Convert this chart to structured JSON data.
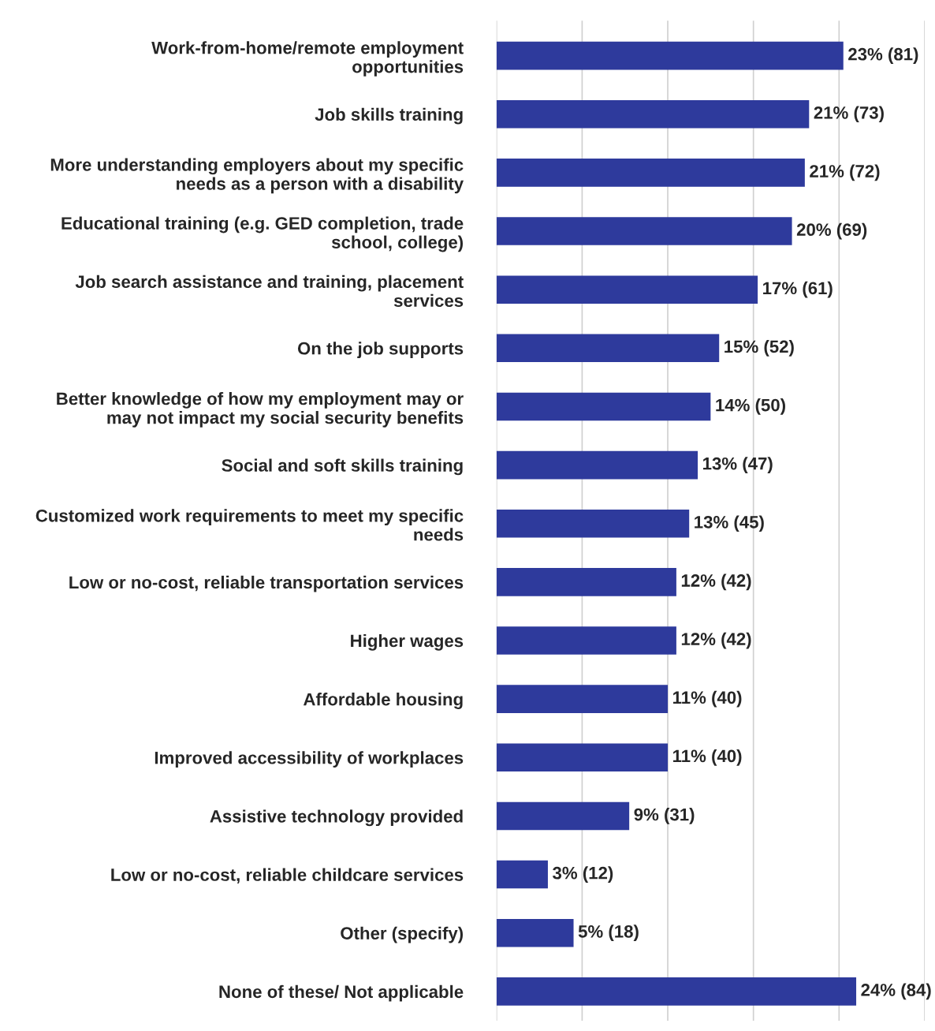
{
  "chart_data": {
    "type": "bar",
    "orientation": "horizontal",
    "categories": [
      "Work-from-home/remote employment\nopportunities",
      "Job skills training",
      "More understanding employers about my specific\nneeds as a person with a disability",
      "Educational training (e.g. GED completion, trade\nschool, college)",
      "Job search assistance and training, placement\nservices",
      "On the job supports",
      "Better knowledge of how my employment may or\nmay not impact my social security benefits",
      "Social and soft skills training",
      "Customized work requirements to meet my specific\nneeds",
      "Low or no-cost, reliable transportation services",
      "Higher wages",
      "Affordable housing",
      "Improved accessibility of workplaces",
      "Assistive technology provided",
      "Low or no-cost, reliable childcare services",
      "Other (specify)",
      "None of these/ Not applicable"
    ],
    "values": [
      81,
      73,
      72,
      69,
      61,
      52,
      50,
      47,
      45,
      42,
      42,
      40,
      40,
      31,
      12,
      18,
      84
    ],
    "value_labels": [
      "23% (81)",
      "21% (73)",
      "21% (72)",
      "20% (69)",
      "17% (61)",
      "15% (52)",
      "14% (50)",
      "13% (47)",
      "13% (45)",
      "12% (42)",
      "12% (42)",
      "11% (40)",
      "11% (40)",
      "9% (31)",
      "3% (12)",
      "5% (18)",
      "24% (84)"
    ],
    "color": "#2e3a9c",
    "xlim": [
      0,
      100
    ],
    "xticks": [
      {
        "value": 0,
        "label": null
      },
      {
        "value": 20,
        "label": null
      },
      {
        "value": 40,
        "label": null
      },
      {
        "value": 60,
        "label": null
      },
      {
        "value": 80,
        "label": null
      },
      {
        "value": 100,
        "label": null
      }
    ],
    "grid": "x",
    "tick_labels": "y"
  }
}
